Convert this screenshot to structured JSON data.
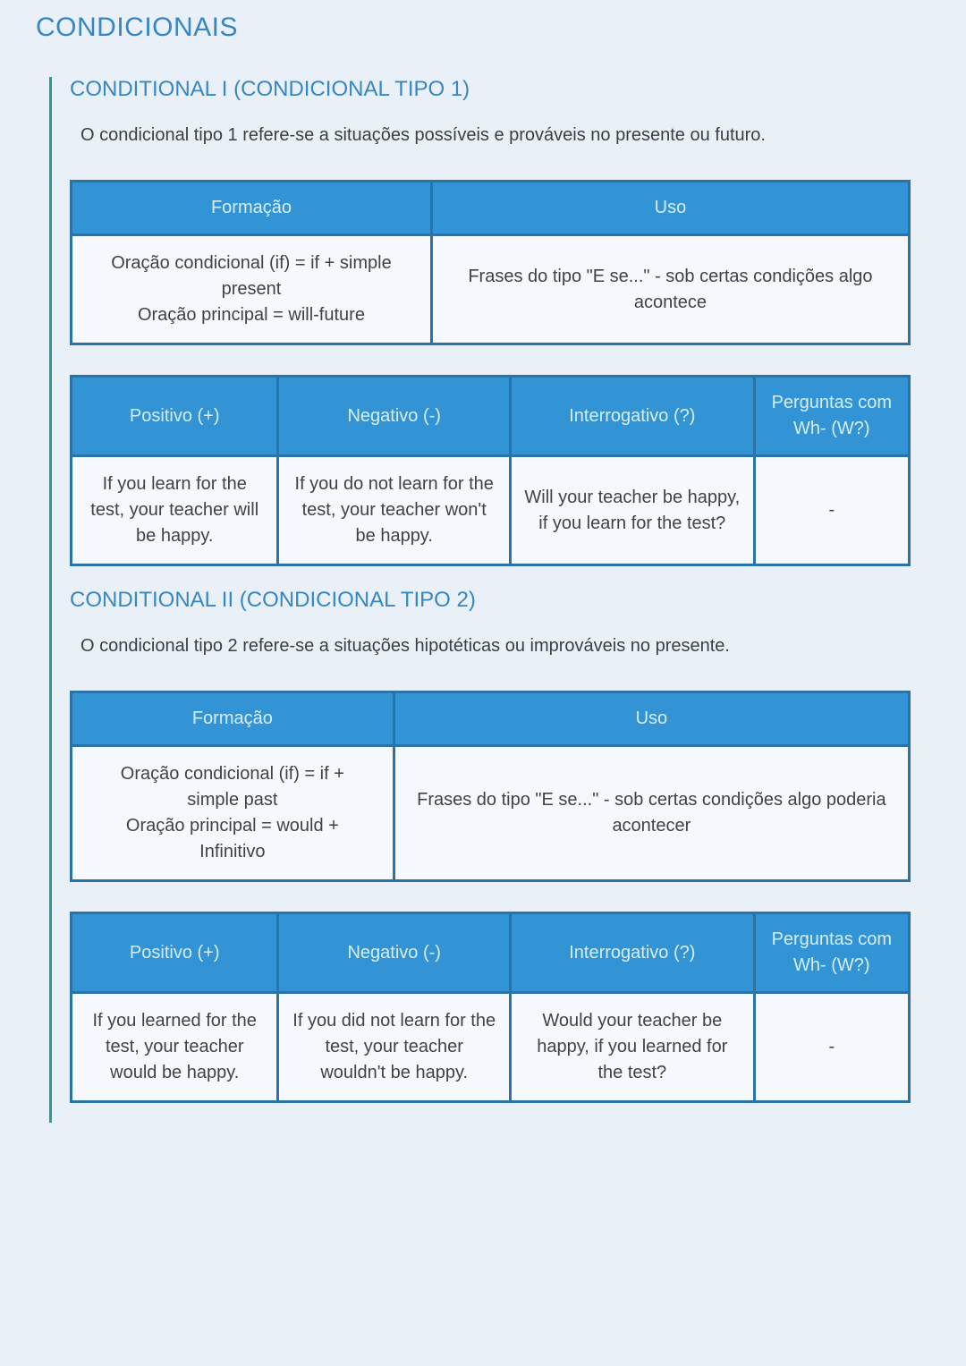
{
  "page": {
    "title": "CONDICIONAIS",
    "colors": {
      "background": "#e9f0f8",
      "heading_blue": "#3787c3",
      "table_header_bg": "#3294d4",
      "table_header_text": "#d6eef9",
      "table_border": "#2b72a8",
      "table_cell_bg": "#f5f9fd",
      "accent_teal_line": "#2a9d8f",
      "body_text": "#3a3f44"
    }
  },
  "sections": [
    {
      "heading": "CONDITIONAL I (CONDICIONAL TIPO 1)",
      "description": "O condicional tipo 1 refere-se a situações possíveis e prováveis no presente ou futuro.",
      "formation_table": {
        "headers": [
          "Formação",
          "Uso"
        ],
        "cells": [
          "Oração condicional (if) = if + simple present\nOração principal = will-future",
          "Frases do tipo \"E se...\" - sob certas condições algo acontece"
        ]
      },
      "forms_table": {
        "headers": [
          "Positivo (+)",
          "Negativo (-)",
          "Interrogativo (?)",
          "Perguntas com Wh- (W?)"
        ],
        "cells": [
          "If you learn for the test, your teacher will be happy.",
          "If you do not learn for the test, your teacher won't be happy.",
          "Will your teacher be happy, if you learn for the test?",
          "-"
        ]
      }
    },
    {
      "heading": "CONDITIONAL II (CONDICIONAL TIPO 2)",
      "description": "O condicional tipo 2 refere-se a situações hipotéticas ou improváveis no presente.",
      "formation_table": {
        "headers": [
          "Formação",
          "Uso"
        ],
        "cells": [
          "Oração condicional (if) = if +\nsimple past\nOração principal = would +\nInfinitivo",
          "Frases do tipo \"E se...\" - sob certas condições algo poderia acontecer"
        ]
      },
      "forms_table": {
        "headers": [
          "Positivo (+)",
          "Negativo (-)",
          "Interrogativo (?)",
          "Perguntas com Wh- (W?)"
        ],
        "cells": [
          "If you learned for the test, your teacher would be happy.",
          "If you did not learn for the test, your teacher wouldn't be happy.",
          "Would your teacher be happy, if you learned for the test?",
          "-"
        ]
      }
    }
  ]
}
